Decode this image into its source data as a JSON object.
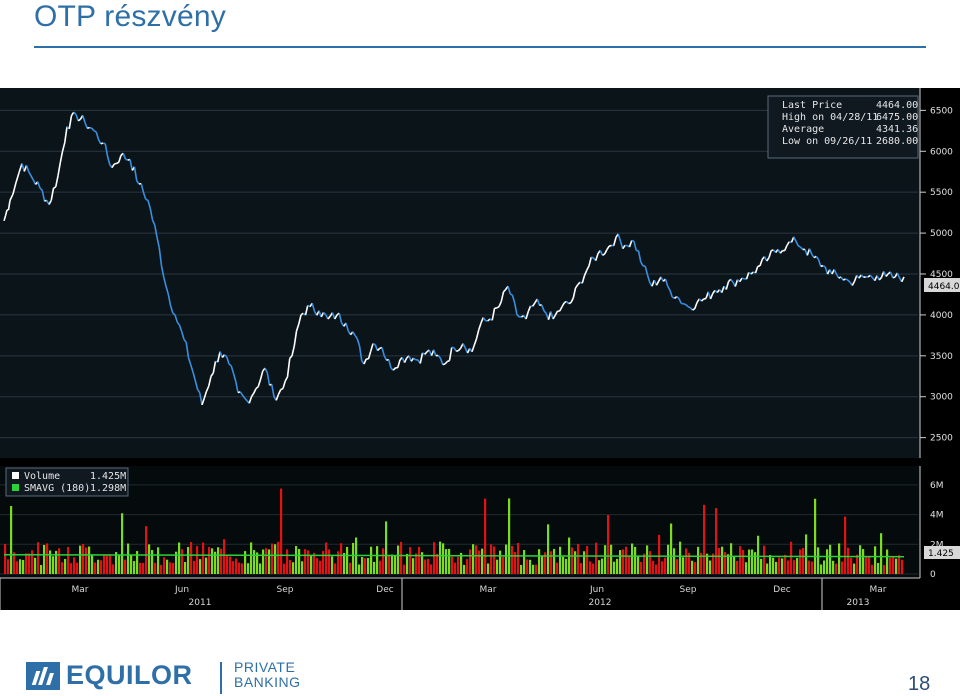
{
  "slide": {
    "title": "OTP részvény",
    "page_number": "18",
    "logo": {
      "name": "EQUILOR",
      "sub_line1": "PRIVATE",
      "sub_line2": "BANKING"
    }
  },
  "colors": {
    "accent": "#2f6fa8",
    "chart_bg": "#000000",
    "price_line": "#ffffff",
    "price_down": "#3a8fe0",
    "volume_up": "#7ddc1f",
    "volume_down": "#e01414",
    "smavg_line": "#29d23a"
  },
  "chart_data": [
    {
      "type": "line",
      "title": "",
      "legend": [
        {
          "label": "Last Price",
          "value": "4464.00"
        },
        {
          "label": "High on 04/28/11",
          "value": "6475.00"
        },
        {
          "label": "Average",
          "value": "4341.36"
        },
        {
          "label": "Low on 09/26/11",
          "value": "2680.00"
        }
      ],
      "legend_position": "top-right",
      "last_price_tag": "4464.0",
      "ylim": [
        2300,
        6700
      ],
      "yticks": [
        "6500",
        "6000",
        "5500",
        "5000",
        "4500",
        "4000",
        "3500",
        "3000",
        "2500"
      ],
      "xlabels": [
        "Mar",
        "Jun",
        "Sep",
        "Dec",
        "Mar",
        "Jun",
        "Sep",
        "Dec",
        "Mar"
      ],
      "years": [
        "2011",
        "2012",
        "2013"
      ],
      "series": [
        {
          "x_index": [
            0,
            2,
            6,
            9,
            12,
            15,
            18,
            21,
            24,
            27,
            30,
            33,
            36,
            39,
            42,
            45,
            48,
            51,
            54,
            57,
            60,
            63,
            66,
            69,
            72,
            75,
            78,
            81,
            84,
            87,
            90,
            93,
            96,
            99,
            102,
            105,
            108,
            111,
            114,
            117,
            120,
            123,
            126,
            129,
            132,
            135,
            138,
            141,
            144,
            147,
            150,
            153,
            156,
            159,
            162,
            165,
            168,
            171,
            174,
            177,
            180,
            183,
            186,
            189,
            192,
            195,
            198,
            201,
            204,
            207,
            210,
            213,
            216,
            219,
            222,
            225,
            228,
            231,
            234,
            237,
            240,
            243,
            246,
            249,
            252,
            255,
            258,
            261,
            264,
            267,
            270,
            273,
            276,
            279,
            282,
            285,
            288,
            291,
            294,
            297,
            300
          ],
          "values": [
            5150,
            5400,
            5850,
            5700,
            5550,
            5350,
            5700,
            6300,
            6450,
            6350,
            6250,
            6100,
            5800,
            5950,
            5900,
            5600,
            5400,
            4950,
            4350,
            4000,
            3700,
            3300,
            2900,
            3250,
            3550,
            3400,
            3050,
            2950,
            3100,
            3350,
            3000,
            3100,
            3500,
            4000,
            4100,
            4050,
            3950,
            4000,
            3900,
            3750,
            3400,
            3650,
            3600,
            3350,
            3450,
            3500,
            3450,
            3550,
            3500,
            3400,
            3600,
            3650,
            3550,
            3900,
            3950,
            4100,
            4350,
            4000,
            3950,
            4150,
            4050,
            3950,
            4100,
            4150,
            4400,
            4600,
            4750,
            4800,
            4950,
            4850,
            4900,
            4600,
            4350,
            4464,
            4300,
            4200,
            4100,
            4150,
            4200,
            4300,
            4350,
            4400,
            4450,
            4500,
            4600,
            4700,
            4800,
            4850,
            4900,
            4800,
            4700,
            4600,
            4500,
            4464,
            4400,
            4450,
            4464,
            4480,
            4470,
            4460,
            4464
          ]
        }
      ]
    },
    {
      "type": "bar",
      "title": "",
      "legend": [
        {
          "label": "Volume",
          "value": "1.425M"
        },
        {
          "label": "SMAVG (180)",
          "value": "1.298M"
        }
      ],
      "legend_position": "top-left",
      "last_value_tag": "1.425",
      "ylim": [
        0,
        7
      ],
      "yticks": [
        "6M",
        "4M",
        "2M",
        "0"
      ],
      "unit": "M",
      "smavg_value": 1.298
    }
  ]
}
